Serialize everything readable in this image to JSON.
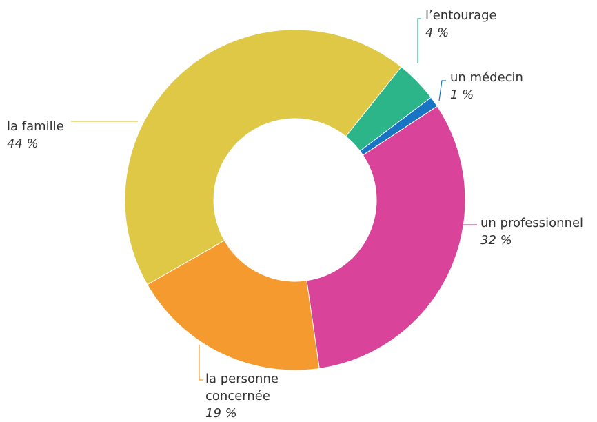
{
  "chart_data": {
    "type": "pie",
    "donut": true,
    "categories": [
      "l’entourage",
      "un médecin",
      "un professionnel",
      "la personne concernée",
      "la famille"
    ],
    "values": [
      4,
      1,
      32,
      19,
      44
    ],
    "value_labels": [
      "4 %",
      "1 %",
      "32 %",
      "19 %",
      "44 %"
    ],
    "colors": [
      "#2db58a",
      "#1a74c4",
      "#d94399",
      "#f59a2e",
      "#dfc845"
    ]
  }
}
